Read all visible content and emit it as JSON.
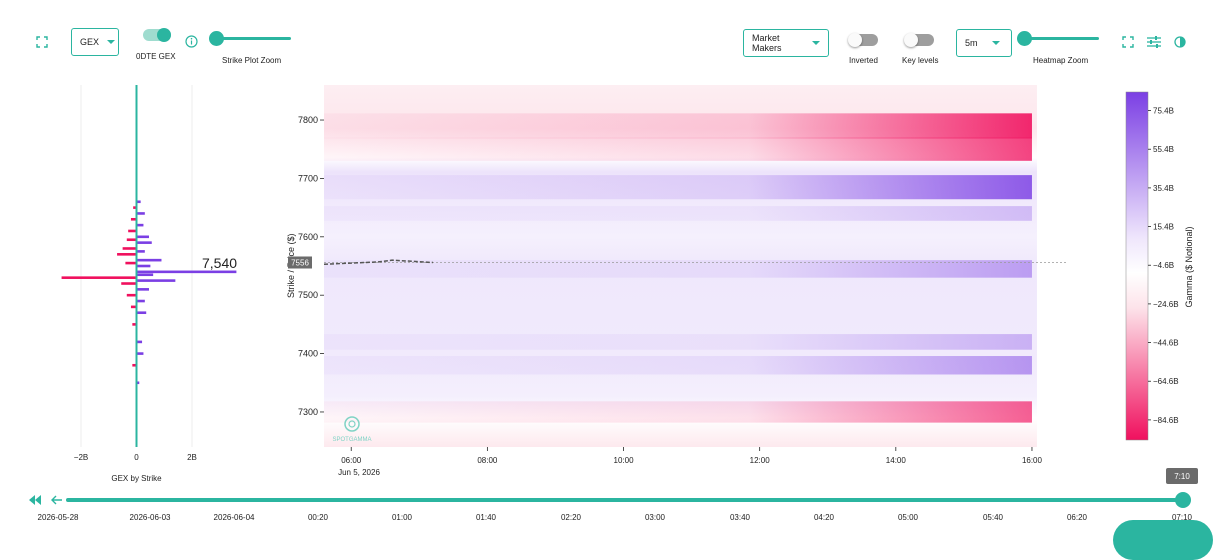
{
  "toolbar": {
    "gex_select": "GEX",
    "odte_label": "0DTE GEX",
    "strike_zoom_label": "Strike Plot Zoom",
    "participant_select": "Market Makers",
    "inverted_label": "Inverted",
    "key_levels_label": "Key levels",
    "interval_select": "5m",
    "heatmap_zoom_label": "Heatmap Zoom",
    "accent_color": "#2bb5a0"
  },
  "strike_plot": {
    "title": "GEX by Strike",
    "x_ticks": [
      "−2B",
      "0",
      "2B"
    ],
    "highlight_label": "7,540"
  },
  "heatmap": {
    "y_axis_label": "Strike / Price ($)",
    "y_ticks": [
      "7800",
      "7700",
      "7600",
      "7500",
      "7400",
      "7300"
    ],
    "x_ticks": [
      "06:00",
      "08:00",
      "10:00",
      "12:00",
      "14:00",
      "16:00"
    ],
    "date_label": "Jun 5, 2026",
    "price_marker": "7556",
    "watermark": "SPOTGAMMA"
  },
  "colorbar": {
    "label": "Gamma ($ Notional)",
    "ticks": [
      "75.4B",
      "55.4B",
      "35.4B",
      "15.4B",
      "−4.6B",
      "−24.6B",
      "−44.6B",
      "−64.6B",
      "−84.6B"
    ],
    "max_color": "#7b3fe4",
    "min_color": "#f0105e"
  },
  "timeline": {
    "current_badge": "7:10",
    "labels": [
      "2026-05-28",
      "2026-06-03",
      "2026-06-04",
      "00:20",
      "01:00",
      "01:40",
      "02:20",
      "03:00",
      "03:40",
      "04:20",
      "05:00",
      "05:40",
      "06:20",
      "07:10"
    ]
  },
  "chart_data": [
    {
      "type": "bar",
      "title": "GEX by Strike",
      "orientation": "horizontal",
      "xlabel": "",
      "ylabel": "",
      "xlim": [
        -2.8,
        3.7
      ],
      "units": "$B",
      "y_range": [
        7240,
        7860
      ],
      "bars": [
        {
          "strike": 7660,
          "value": 0.15
        },
        {
          "strike": 7650,
          "value": -0.12
        },
        {
          "strike": 7640,
          "value": 0.3
        },
        {
          "strike": 7630,
          "value": -0.2
        },
        {
          "strike": 7620,
          "value": 0.25
        },
        {
          "strike": 7610,
          "value": -0.3
        },
        {
          "strike": 7600,
          "value": 0.45
        },
        {
          "strike": 7595,
          "value": -0.35
        },
        {
          "strike": 7590,
          "value": 0.55
        },
        {
          "strike": 7580,
          "value": -0.5
        },
        {
          "strike": 7575,
          "value": 0.3
        },
        {
          "strike": 7570,
          "value": -0.7
        },
        {
          "strike": 7560,
          "value": 0.9
        },
        {
          "strike": 7555,
          "value": -0.4
        },
        {
          "strike": 7550,
          "value": 0.5
        },
        {
          "strike": 7540,
          "value": 3.6
        },
        {
          "strike": 7535,
          "value": 0.6
        },
        {
          "strike": 7530,
          "value": -2.7
        },
        {
          "strike": 7525,
          "value": 1.4
        },
        {
          "strike": 7520,
          "value": -0.55
        },
        {
          "strike": 7510,
          "value": 0.45
        },
        {
          "strike": 7500,
          "value": -0.35
        },
        {
          "strike": 7490,
          "value": 0.3
        },
        {
          "strike": 7480,
          "value": -0.2
        },
        {
          "strike": 7470,
          "value": 0.35
        },
        {
          "strike": 7450,
          "value": -0.15
        },
        {
          "strike": 7420,
          "value": 0.2
        },
        {
          "strike": 7400,
          "value": 0.25
        },
        {
          "strike": 7380,
          "value": -0.15
        },
        {
          "strike": 7350,
          "value": 0.1
        }
      ],
      "highlight": {
        "strike": 7540,
        "label": "7,540"
      }
    },
    {
      "type": "heatmap",
      "xlabel": "",
      "ylabel": "Strike / Price ($)",
      "colorbar_label": "Gamma ($ Notional)",
      "x_ticks": [
        "06:00",
        "08:00",
        "10:00",
        "12:00",
        "14:00",
        "16:00"
      ],
      "x_range_hours": [
        5.6,
        16.5
      ],
      "y_range": [
        7240,
        7860
      ],
      "y_ticks": [
        7800,
        7700,
        7600,
        7500,
        7400,
        7300
      ],
      "color_range_B": [
        -95,
        85
      ],
      "bands": [
        {
          "strike": 7790,
          "gamma_at_close_B": -80
        },
        {
          "strike": 7750,
          "gamma_at_close_B": -70
        },
        {
          "strike": 7685,
          "gamma_at_close_B": 75
        },
        {
          "strike": 7640,
          "gamma_at_close_B": 25
        },
        {
          "strike": 7545,
          "gamma_at_close_B": 40
        },
        {
          "strike": 7420,
          "gamma_at_close_B": 30
        },
        {
          "strike": 7380,
          "gamma_at_close_B": 45
        },
        {
          "strike": 7300,
          "gamma_at_close_B": -60
        }
      ],
      "price_series": [
        {
          "t": 5.6,
          "price": 7553
        },
        {
          "t": 6.0,
          "price": 7555
        },
        {
          "t": 6.4,
          "price": 7557
        },
        {
          "t": 6.6,
          "price": 7560
        },
        {
          "t": 6.9,
          "price": 7558
        },
        {
          "t": 7.2,
          "price": 7556
        }
      ],
      "current_price": 7556
    }
  ]
}
